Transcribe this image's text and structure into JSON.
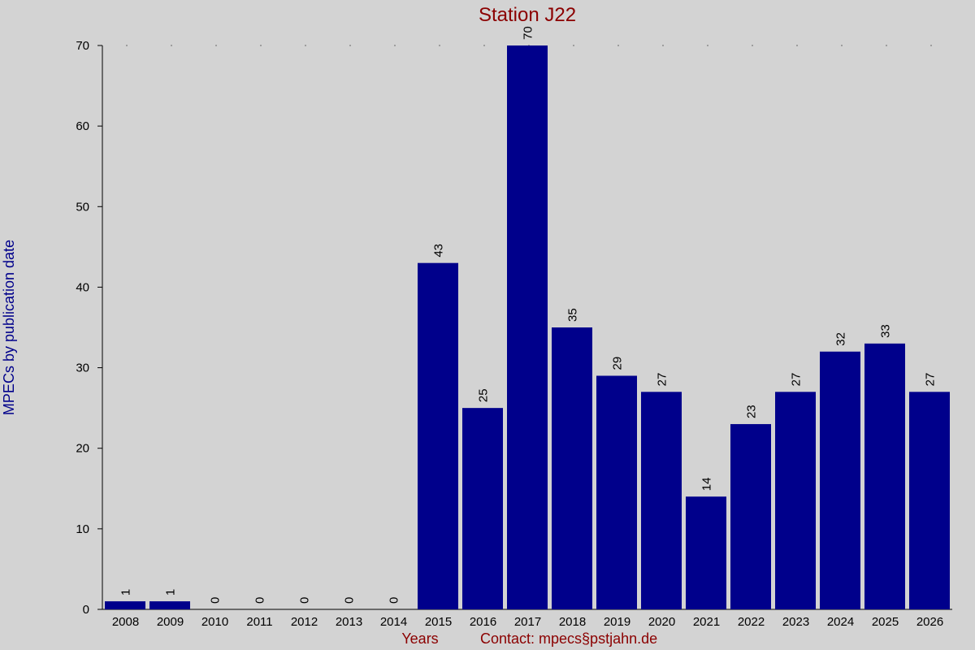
{
  "chart_data": {
    "type": "bar",
    "title": "Station J22",
    "xlabel": "Years",
    "ylabel": "MPECs by publication date",
    "footer": "Contact: mpecs§pstjahn.de",
    "categories": [
      "2008",
      "2009",
      "2010",
      "2011",
      "2012",
      "2013",
      "2014",
      "2015",
      "2016",
      "2017",
      "2018",
      "2019",
      "2020",
      "2021",
      "2022",
      "2023",
      "2024",
      "2025",
      "2026"
    ],
    "values": [
      1,
      1,
      0,
      0,
      0,
      0,
      0,
      43,
      25,
      70,
      35,
      29,
      27,
      14,
      23,
      27,
      32,
      33,
      27
    ],
    "ylim": [
      0,
      70
    ],
    "yticks": [
      0,
      10,
      20,
      30,
      40,
      50,
      60,
      70
    ],
    "bar_color": "#00008b",
    "background_color": "#d3d3d3",
    "value_labels": true
  }
}
